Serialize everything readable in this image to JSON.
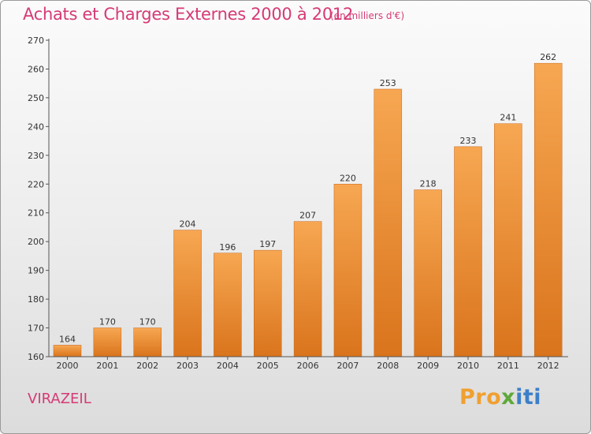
{
  "header": {
    "title": "Achats et Charges Externes 2000 à 2012",
    "unit": "(en milliers d'€)"
  },
  "footer": {
    "city": "VIRAZEIL",
    "logo_parts": [
      "Pro",
      "x",
      "iti"
    ]
  },
  "colors": {
    "title": "#d63a75",
    "bar_top": "#f7a752",
    "bar_bottom": "#d9741c",
    "axis": "#555555"
  },
  "chart_data": {
    "type": "bar",
    "categories": [
      "2000",
      "2001",
      "2002",
      "2003",
      "2004",
      "2005",
      "2006",
      "2007",
      "2008",
      "2009",
      "2010",
      "2011",
      "2012"
    ],
    "values": [
      164,
      170,
      170,
      204,
      196,
      197,
      207,
      220,
      253,
      218,
      233,
      241,
      262
    ],
    "ylim": [
      160,
      270
    ],
    "yticks": [
      160,
      170,
      180,
      190,
      200,
      210,
      220,
      230,
      240,
      250,
      260,
      270
    ],
    "grid": false
  }
}
